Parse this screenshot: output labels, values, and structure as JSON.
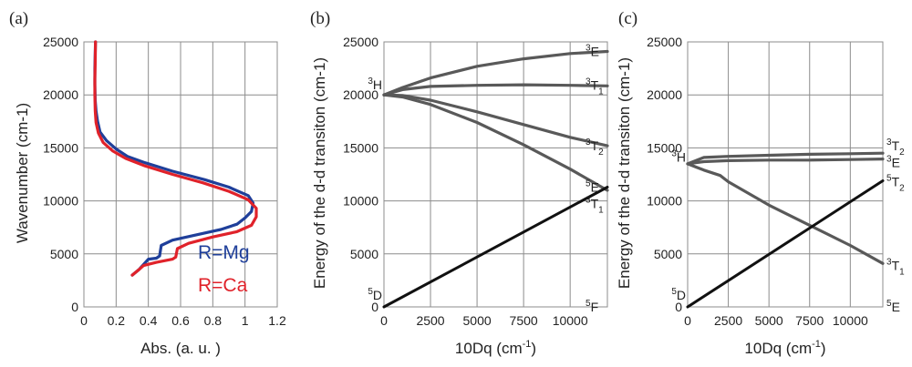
{
  "colors": {
    "mg": "#1f3f9a",
    "ca": "#e0222a",
    "curve": "#595959",
    "line": "#111111",
    "grid": "#8c8c8c"
  },
  "chart_data": [
    {
      "panel": "(a)",
      "type": "line",
      "xlabel": "Abs. (a. u. )",
      "ylabel": "Wavenumber (cm-1)",
      "xlim": [
        0,
        1.2
      ],
      "ylim": [
        0,
        25000
      ],
      "xticks": [
        0,
        0.2,
        0.4,
        0.6,
        0.8,
        1,
        1.2
      ],
      "xtick_labels": [
        "0",
        "0.2",
        "0.4",
        "0.6",
        "0.8",
        "1",
        "1.2"
      ],
      "yticks": [
        0,
        5000,
        10000,
        15000,
        20000,
        25000
      ],
      "ytick_labels": [
        "0",
        "5000",
        "10000",
        "15000",
        "20000",
        "25000"
      ],
      "grid": true,
      "legend": [
        "R=Mg",
        "R=Ca"
      ],
      "series": [
        {
          "name": "R=Mg",
          "color": "mg",
          "points": [
            [
              0.3,
              3000
            ],
            [
              0.34,
              3500
            ],
            [
              0.37,
              4000
            ],
            [
              0.4,
              4500
            ],
            [
              0.45,
              4600
            ],
            [
              0.47,
              4800
            ],
            [
              0.48,
              5800
            ],
            [
              0.55,
              6300
            ],
            [
              0.7,
              6800
            ],
            [
              0.85,
              7300
            ],
            [
              0.95,
              7800
            ],
            [
              1.0,
              8400
            ],
            [
              1.04,
              9000
            ],
            [
              1.05,
              9800
            ],
            [
              1.02,
              10500
            ],
            [
              0.9,
              11300
            ],
            [
              0.75,
              12000
            ],
            [
              0.55,
              12800
            ],
            [
              0.38,
              13600
            ],
            [
              0.27,
              14200
            ],
            [
              0.2,
              14900
            ],
            [
              0.14,
              15700
            ],
            [
              0.1,
              16500
            ],
            [
              0.085,
              17500
            ],
            [
              0.075,
              18500
            ],
            [
              0.07,
              19500
            ],
            [
              0.068,
              21000
            ],
            [
              0.068,
              22500
            ],
            [
              0.07,
              24000
            ],
            [
              0.072,
              25000
            ]
          ]
        },
        {
          "name": "R=Ca",
          "color": "ca",
          "points": [
            [
              0.3,
              3000
            ],
            [
              0.34,
              3500
            ],
            [
              0.37,
              3900
            ],
            [
              0.45,
              4200
            ],
            [
              0.55,
              4500
            ],
            [
              0.57,
              4700
            ],
            [
              0.58,
              5500
            ],
            [
              0.65,
              6000
            ],
            [
              0.8,
              6600
            ],
            [
              0.95,
              7100
            ],
            [
              1.04,
              7700
            ],
            [
              1.07,
              8500
            ],
            [
              1.07,
              9300
            ],
            [
              1.02,
              10100
            ],
            [
              0.9,
              10900
            ],
            [
              0.74,
              11700
            ],
            [
              0.55,
              12500
            ],
            [
              0.38,
              13300
            ],
            [
              0.26,
              14000
            ],
            [
              0.18,
              14700
            ],
            [
              0.12,
              15500
            ],
            [
              0.09,
              16400
            ],
            [
              0.075,
              17400
            ],
            [
              0.07,
              18500
            ],
            [
              0.068,
              20000
            ],
            [
              0.068,
              21500
            ],
            [
              0.07,
              23000
            ],
            [
              0.072,
              25000
            ]
          ]
        }
      ]
    },
    {
      "panel": "(b)",
      "type": "line",
      "xlabel": "10Dq (cm",
      "xlabel_sup": "-1",
      "xlabel_tail": ")",
      "ylabel": "Energy of the d-d transiton (cm-1)",
      "xlim": [
        0,
        12000
      ],
      "ylim": [
        0,
        25000
      ],
      "xticks": [
        0,
        2500,
        5000,
        7500,
        10000
      ],
      "xtick_labels": [
        "0",
        "2500",
        "5000",
        "7500",
        "10000"
      ],
      "yticks": [
        0,
        5000,
        10000,
        15000,
        20000,
        25000
      ],
      "ytick_labels": [
        "0",
        "5000",
        "10000",
        "15000",
        "20000",
        "25000"
      ],
      "grid": true,
      "left_labels": [
        {
          "sup": "3",
          "text": "H",
          "y": 20000
        },
        {
          "sup": "5",
          "text": "D",
          "y": 0
        }
      ],
      "right_labels": [
        {
          "sup": "3",
          "text": "E",
          "y": 24100
        },
        {
          "sup": "3",
          "text": "T",
          "sub": "1",
          "y": 20900
        },
        {
          "sup": "3",
          "text": "T",
          "sub": "2",
          "y": 15200
        },
        {
          "sup": "5",
          "text": "E",
          "y": 11300
        },
        {
          "sup": "3",
          "text": "T",
          "sub": "1",
          "y": 11000
        },
        {
          "sup": "5",
          "text": "F",
          "y": 0
        }
      ],
      "series": [
        {
          "label": "3E",
          "color": "curve",
          "points": [
            [
              0,
              20000
            ],
            [
              1000,
              20700
            ],
            [
              2500,
              21600
            ],
            [
              5000,
              22700
            ],
            [
              7500,
              23400
            ],
            [
              10000,
              23900
            ],
            [
              12000,
              24100
            ]
          ]
        },
        {
          "label": "3T1",
          "color": "curve",
          "points": [
            [
              0,
              20000
            ],
            [
              1000,
              20500
            ],
            [
              2500,
              20800
            ],
            [
              5000,
              20900
            ],
            [
              7500,
              20950
            ],
            [
              10000,
              20900
            ],
            [
              12000,
              20850
            ]
          ]
        },
        {
          "label": "3T2",
          "color": "curve",
          "points": [
            [
              0,
              20000
            ],
            [
              1000,
              19950
            ],
            [
              2500,
              19500
            ],
            [
              5000,
              18400
            ],
            [
              7500,
              17200
            ],
            [
              10000,
              16000
            ],
            [
              12000,
              15200
            ]
          ]
        },
        {
          "label": "3T1 low",
          "color": "curve",
          "points": [
            [
              0,
              20000
            ],
            [
              1000,
              19800
            ],
            [
              2500,
              19100
            ],
            [
              5000,
              17400
            ],
            [
              7500,
              15300
            ],
            [
              10000,
              13000
            ],
            [
              12000,
              11000
            ]
          ]
        },
        {
          "label": "5E",
          "color": "line",
          "points": [
            [
              0,
              0
            ],
            [
              12000,
              11300
            ]
          ]
        }
      ]
    },
    {
      "panel": "(c)",
      "type": "line",
      "xlabel": "10Dq (cm",
      "xlabel_sup": "-1",
      "xlabel_tail": ")",
      "ylabel": "Energy of the d-d transiton (cm-1)",
      "xlim": [
        0,
        12000
      ],
      "ylim": [
        0,
        25000
      ],
      "xticks": [
        0,
        2500,
        5000,
        7500,
        10000
      ],
      "xtick_labels": [
        "0",
        "2500",
        "5000",
        "7500",
        "10000"
      ],
      "yticks": [
        0,
        5000,
        10000,
        15000,
        20000,
        25000
      ],
      "ytick_labels": [
        "0",
        "5000",
        "10000",
        "15000",
        "20000",
        "25000"
      ],
      "grid": true,
      "left_labels": [
        {
          "sup": "3",
          "text": "H",
          "y": 13200
        },
        {
          "sup": "5",
          "text": "D",
          "y": 0
        }
      ],
      "right_labels": [
        {
          "sup": "3",
          "text": "T",
          "sub": "2",
          "y": 15200
        },
        {
          "sup": "3",
          "text": "E",
          "y": 13600
        },
        {
          "sup": "5",
          "text": "T",
          "sub": "2",
          "y": 11800
        },
        {
          "sup": "3",
          "text": "T",
          "sub": "1",
          "y": 3900
        },
        {
          "sup": "5",
          "text": "E",
          "y": 0
        }
      ],
      "series": [
        {
          "label": "3T2",
          "color": "curve",
          "points": [
            [
              0,
              13500
            ],
            [
              1000,
              14100
            ],
            [
              2500,
              14200
            ],
            [
              5000,
              14300
            ],
            [
              7500,
              14400
            ],
            [
              10000,
              14450
            ],
            [
              12000,
              14500
            ]
          ]
        },
        {
          "label": "3E",
          "color": "curve",
          "points": [
            [
              0,
              13500
            ],
            [
              1000,
              13700
            ],
            [
              2500,
              13800
            ],
            [
              5000,
              13850
            ],
            [
              7500,
              13850
            ],
            [
              10000,
              13900
            ],
            [
              12000,
              13950
            ]
          ]
        },
        {
          "label": "3T1",
          "color": "curve",
          "points": [
            [
              0,
              13500
            ],
            [
              1000,
              12900
            ],
            [
              2000,
              12400
            ],
            [
              2500,
              11800
            ],
            [
              5000,
              9600
            ],
            [
              7500,
              7700
            ],
            [
              10000,
              5800
            ],
            [
              12000,
              4100
            ]
          ]
        },
        {
          "label": "5T2",
          "color": "line",
          "points": [
            [
              0,
              0
            ],
            [
              12000,
              11900
            ]
          ]
        }
      ]
    }
  ]
}
